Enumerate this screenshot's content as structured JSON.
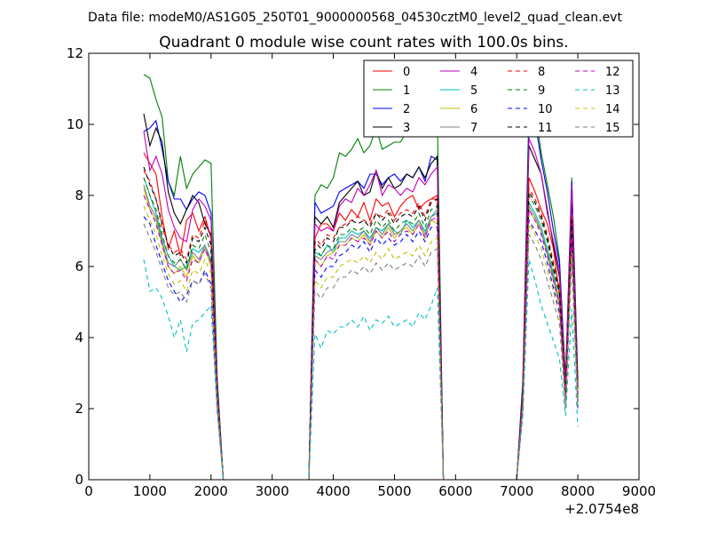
{
  "chart_data": {
    "type": "line",
    "suptitle": "Data file: modeM0/AS1G05_250T01_9000000568_04530cztM0_level2_quad_clean.evt",
    "title": "Quadrant 0 module wise count rates with 100.0s bins.",
    "xlabel": "",
    "ylabel": "",
    "x_offset_label": "+2.0754e8",
    "xlim": [
      0,
      9000
    ],
    "ylim": [
      0,
      12
    ],
    "xticks": [
      "0",
      "1000",
      "2000",
      "3000",
      "4000",
      "5000",
      "6000",
      "7000",
      "8000",
      "9000"
    ],
    "yticks": [
      "0",
      "2",
      "4",
      "6",
      "8",
      "10",
      "12"
    ],
    "grid": false,
    "legend_position": "top-right",
    "x": [
      900,
      1000,
      1100,
      1200,
      1300,
      1400,
      1500,
      1600,
      1700,
      1800,
      1900,
      2000,
      2100,
      2200,
      2300,
      3600,
      3700,
      3800,
      3900,
      4000,
      4100,
      4200,
      4300,
      4400,
      4500,
      4600,
      4700,
      4800,
      4900,
      5000,
      5100,
      5200,
      5300,
      5400,
      5500,
      5600,
      5700,
      5800,
      5900,
      7000,
      7100,
      7200,
      7300,
      7400,
      7500,
      7600,
      7700,
      7800,
      7900,
      8000
    ],
    "series": [
      {
        "name": "0",
        "color": "#ff0000",
        "dash": "solid",
        "values": [
          9.2,
          8.9,
          8.6,
          7.4,
          6.5,
          7.0,
          6.3,
          7.3,
          7.5,
          7.0,
          7.4,
          6.8,
          2.5,
          0,
          0,
          0,
          6.8,
          7.2,
          7.2,
          7.0,
          7.5,
          7.3,
          7.6,
          7.4,
          7.8,
          7.3,
          7.9,
          7.7,
          7.8,
          7.4,
          7.7,
          7.9,
          8.0,
          7.6,
          7.8,
          7.9,
          8.0,
          0,
          0,
          0,
          2.4,
          8.5,
          8.1,
          7.6,
          7.2,
          6.5,
          5.2,
          2.6,
          7.4,
          2.6
        ]
      },
      {
        "name": "1",
        "color": "#008000",
        "dash": "solid",
        "values": [
          11.4,
          11.3,
          10.7,
          10.2,
          8.4,
          8.0,
          9.1,
          8.2,
          8.6,
          8.8,
          9.0,
          8.9,
          2.9,
          0,
          0,
          0,
          8.0,
          8.3,
          8.2,
          8.5,
          9.2,
          9.1,
          9.3,
          9.6,
          9.2,
          9.4,
          9.9,
          9.3,
          9.4,
          9.5,
          9.5,
          9.8,
          9.7,
          10.0,
          10.2,
          10.6,
          10.3,
          0,
          0,
          0,
          2.8,
          10.5,
          10.4,
          9.2,
          8.3,
          7.4,
          6.2,
          2.8,
          8.5,
          2.8
        ]
      },
      {
        "name": "2",
        "color": "#0000ff",
        "dash": "solid",
        "values": [
          9.8,
          9.9,
          10.1,
          9.3,
          8.4,
          7.9,
          7.9,
          7.6,
          7.9,
          8.1,
          8.0,
          7.5,
          2.7,
          0,
          0,
          0,
          7.8,
          7.5,
          7.6,
          7.7,
          8.1,
          8.2,
          8.3,
          8.4,
          8.2,
          8.6,
          8.6,
          8.3,
          8.5,
          8.6,
          8.4,
          8.6,
          8.5,
          8.8,
          8.4,
          9.1,
          9.0,
          0,
          0,
          0,
          2.7,
          9.9,
          10.1,
          9.0,
          8.1,
          7.0,
          6.1,
          2.7,
          8.4,
          2.7
        ]
      },
      {
        "name": "3",
        "color": "#000000",
        "dash": "solid",
        "values": [
          10.3,
          9.4,
          9.9,
          9.5,
          8.1,
          7.5,
          7.2,
          7.6,
          8.0,
          7.8,
          7.2,
          6.9,
          2.6,
          0,
          0,
          0,
          7.4,
          7.2,
          7.4,
          7.1,
          7.8,
          8.0,
          8.2,
          8.4,
          8.0,
          8.1,
          8.7,
          8.2,
          8.5,
          8.2,
          8.3,
          8.6,
          8.5,
          8.8,
          8.5,
          8.9,
          9.1,
          0,
          0,
          0,
          2.6,
          9.4,
          9.0,
          8.6,
          7.6,
          6.6,
          5.7,
          2.8,
          8.0,
          2.6
        ]
      },
      {
        "name": "4",
        "color": "#bf00bf",
        "dash": "solid",
        "values": [
          9.8,
          8.7,
          9.1,
          8.6,
          7.6,
          7.1,
          6.8,
          6.7,
          7.6,
          7.9,
          7.7,
          7.3,
          2.6,
          0,
          0,
          0,
          7.2,
          7.0,
          7.1,
          7.0,
          7.7,
          7.9,
          7.8,
          8.2,
          8.0,
          8.3,
          8.7,
          8.0,
          8.3,
          8.2,
          8.0,
          8.2,
          8.1,
          8.5,
          8.3,
          8.6,
          8.8,
          0,
          0,
          0,
          2.5,
          9.6,
          9.2,
          8.6,
          7.5,
          6.7,
          5.9,
          2.6,
          8.3,
          2.4
        ]
      },
      {
        "name": "5",
        "color": "#00bfbf",
        "dash": "solid",
        "values": [
          8.5,
          8.0,
          7.5,
          6.8,
          6.3,
          6.0,
          5.9,
          6.0,
          6.5,
          6.4,
          6.6,
          6.2,
          2.3,
          0,
          0,
          0,
          6.4,
          6.3,
          6.6,
          6.4,
          6.8,
          6.8,
          7.0,
          6.9,
          7.0,
          6.8,
          7.1,
          7.0,
          7.2,
          7.0,
          6.9,
          7.3,
          7.1,
          7.3,
          7.0,
          7.4,
          7.6,
          0,
          0,
          0,
          2.2,
          7.8,
          7.5,
          7.1,
          6.5,
          5.8,
          5.0,
          2.2,
          7.0,
          2.2
        ]
      },
      {
        "name": "6",
        "color": "#bfbf00",
        "dash": "solid",
        "values": [
          8.2,
          7.6,
          7.3,
          6.6,
          6.0,
          5.8,
          6.0,
          5.7,
          6.3,
          6.1,
          6.5,
          6.0,
          2.2,
          0,
          0,
          0,
          6.2,
          6.0,
          6.3,
          6.4,
          6.6,
          6.6,
          6.8,
          6.7,
          6.9,
          6.6,
          7.0,
          6.8,
          7.1,
          6.8,
          7.0,
          7.1,
          6.9,
          7.2,
          6.8,
          7.3,
          7.2,
          0,
          0,
          0,
          2.1,
          7.6,
          7.3,
          7.0,
          6.3,
          5.6,
          4.9,
          2.1,
          6.8,
          2.1
        ]
      },
      {
        "name": "7",
        "color": "#7f7f7f",
        "dash": "solid",
        "values": [
          8.3,
          7.7,
          7.4,
          6.7,
          6.1,
          6.0,
          6.2,
          5.9,
          6.4,
          6.2,
          6.6,
          6.1,
          2.3,
          0,
          0,
          0,
          6.3,
          6.2,
          6.4,
          6.5,
          6.7,
          6.7,
          6.9,
          6.8,
          7.0,
          6.7,
          7.1,
          6.9,
          7.2,
          6.9,
          7.0,
          7.2,
          7.0,
          7.3,
          6.9,
          7.4,
          7.5,
          0,
          0,
          0,
          2.2,
          7.7,
          7.4,
          7.0,
          6.4,
          5.7,
          5.0,
          2.2,
          6.9,
          2.2
        ]
      },
      {
        "name": "8",
        "color": "#ff0000",
        "dash": "dashed",
        "values": [
          8.7,
          8.4,
          7.9,
          7.1,
          6.6,
          6.4,
          6.5,
          6.2,
          6.9,
          6.8,
          7.3,
          6.8,
          2.5,
          0,
          0,
          0,
          6.8,
          6.6,
          6.9,
          6.8,
          7.1,
          7.2,
          7.3,
          7.4,
          7.3,
          7.2,
          7.5,
          7.4,
          7.6,
          7.3,
          7.5,
          7.6,
          7.5,
          7.8,
          7.4,
          7.9,
          7.9,
          0,
          0,
          0,
          2.4,
          8.2,
          7.9,
          7.5,
          6.9,
          6.1,
          5.4,
          2.4,
          7.4,
          2.4
        ]
      },
      {
        "name": "9",
        "color": "#008000",
        "dash": "dashed",
        "values": [
          8.5,
          8.0,
          7.6,
          6.9,
          6.3,
          6.1,
          6.2,
          5.9,
          6.6,
          6.5,
          6.9,
          6.4,
          2.4,
          0,
          0,
          0,
          6.5,
          6.3,
          6.6,
          6.5,
          6.9,
          6.9,
          7.1,
          7.0,
          7.1,
          6.9,
          7.3,
          7.1,
          7.3,
          7.0,
          7.2,
          7.3,
          7.2,
          7.5,
          7.1,
          7.6,
          7.7,
          0,
          0,
          0,
          2.3,
          8.0,
          7.7,
          7.3,
          6.7,
          5.9,
          5.2,
          2.3,
          7.1,
          2.3
        ]
      },
      {
        "name": "10",
        "color": "#0000ff",
        "dash": "dashed",
        "values": [
          7.4,
          7.2,
          6.6,
          6.1,
          5.6,
          5.3,
          5.0,
          5.2,
          5.6,
          5.5,
          5.9,
          5.5,
          2.1,
          0,
          0,
          0,
          5.9,
          5.7,
          6.0,
          6.0,
          6.3,
          6.4,
          6.6,
          6.5,
          6.7,
          6.4,
          6.8,
          6.6,
          6.8,
          6.6,
          6.7,
          6.9,
          6.7,
          7.0,
          6.7,
          7.1,
          7.1,
          0,
          0,
          0,
          2.0,
          7.3,
          7.0,
          6.7,
          6.1,
          5.4,
          4.7,
          2.0,
          6.6,
          2.0
        ]
      },
      {
        "name": "11",
        "color": "#000000",
        "dash": "dashed",
        "values": [
          8.8,
          8.3,
          7.9,
          7.2,
          6.6,
          6.3,
          6.4,
          6.1,
          6.8,
          6.7,
          7.1,
          6.6,
          2.4,
          0,
          0,
          0,
          6.7,
          6.5,
          6.8,
          6.7,
          7.1,
          7.1,
          7.3,
          7.2,
          7.3,
          7.1,
          7.5,
          7.3,
          7.5,
          7.2,
          7.4,
          7.5,
          7.4,
          7.7,
          7.3,
          7.8,
          7.9,
          0,
          0,
          0,
          2.3,
          8.1,
          7.8,
          7.4,
          6.8,
          6.0,
          5.3,
          2.3,
          7.3,
          2.3
        ]
      },
      {
        "name": "12",
        "color": "#bf00bf",
        "dash": "dashed",
        "values": [
          8.0,
          7.6,
          7.2,
          6.6,
          6.0,
          5.8,
          5.9,
          5.6,
          6.2,
          6.1,
          6.5,
          6.1,
          2.3,
          0,
          0,
          0,
          6.2,
          6.0,
          6.3,
          6.2,
          6.6,
          6.6,
          6.8,
          6.7,
          6.8,
          6.6,
          7.0,
          6.8,
          7.0,
          6.7,
          6.9,
          7.0,
          6.9,
          7.2,
          6.8,
          7.3,
          7.4,
          0,
          0,
          0,
          2.2,
          7.6,
          7.3,
          6.9,
          6.3,
          5.6,
          4.9,
          2.2,
          6.8,
          2.2
        ]
      },
      {
        "name": "13",
        "color": "#00bfbf",
        "dash": "dashed",
        "values": [
          6.2,
          5.3,
          5.4,
          5.1,
          4.6,
          4.0,
          4.5,
          3.6,
          4.4,
          4.5,
          4.7,
          4.9,
          1.9,
          0,
          0,
          0,
          4.1,
          3.7,
          4.2,
          4.1,
          4.3,
          4.3,
          4.5,
          4.3,
          4.6,
          4.2,
          4.5,
          4.4,
          4.6,
          4.3,
          4.4,
          4.5,
          4.3,
          4.7,
          4.5,
          4.9,
          5.4,
          0,
          0,
          0,
          1.8,
          6.2,
          5.6,
          4.9,
          4.4,
          3.9,
          3.4,
          1.8,
          4.8,
          1.5
        ]
      },
      {
        "name": "14",
        "color": "#bfbf00",
        "dash": "dashed",
        "values": [
          7.7,
          7.3,
          6.9,
          6.3,
          5.8,
          5.5,
          5.6,
          5.3,
          5.9,
          5.8,
          6.2,
          5.8,
          2.2,
          0,
          0,
          0,
          5.6,
          5.4,
          5.7,
          5.7,
          6.0,
          6.1,
          6.2,
          6.1,
          6.3,
          6.1,
          6.4,
          6.2,
          6.5,
          6.2,
          6.3,
          6.4,
          6.3,
          6.6,
          6.3,
          6.7,
          6.8,
          0,
          0,
          0,
          2.1,
          7.2,
          6.9,
          6.5,
          5.9,
          5.3,
          4.6,
          2.1,
          6.4,
          2.1
        ]
      },
      {
        "name": "15",
        "color": "#7f7f7f",
        "dash": "dashed",
        "values": [
          7.2,
          6.8,
          6.4,
          5.9,
          5.4,
          5.2,
          5.3,
          5.0,
          5.6,
          5.5,
          5.8,
          5.4,
          2.0,
          0,
          0,
          0,
          5.3,
          5.1,
          5.4,
          5.4,
          5.7,
          5.7,
          5.9,
          5.8,
          6.0,
          5.8,
          6.1,
          5.9,
          6.1,
          5.9,
          6.0,
          6.1,
          6.0,
          6.3,
          6.0,
          6.4,
          6.5,
          0,
          0,
          0,
          2.0,
          6.9,
          6.6,
          6.2,
          5.6,
          5.0,
          4.4,
          2.0,
          6.1,
          2.0
        ]
      }
    ]
  }
}
